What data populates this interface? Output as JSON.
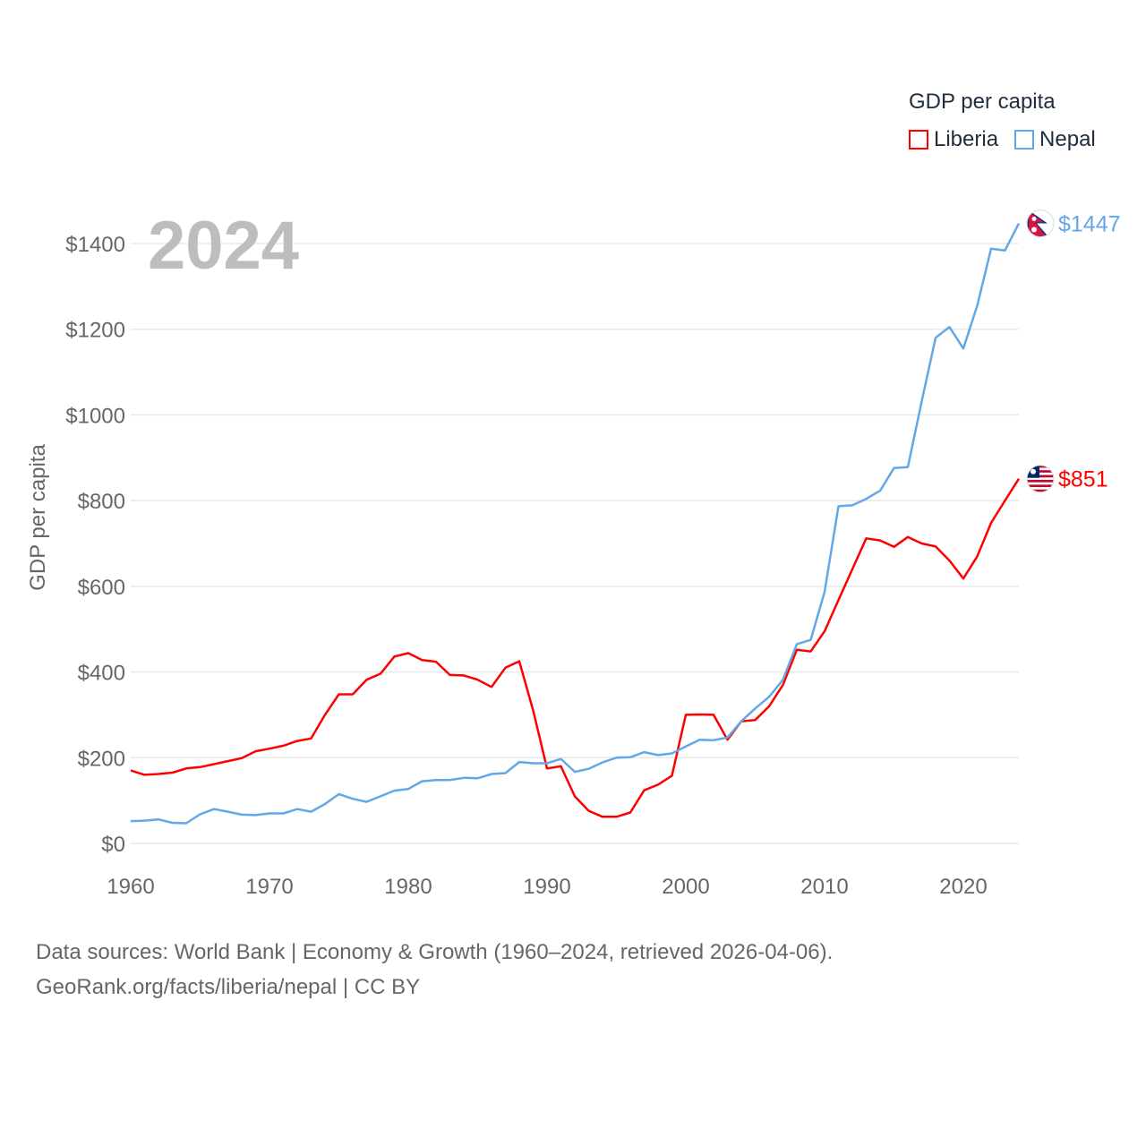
{
  "chart_data": {
    "type": "line",
    "title": "GDP per capita",
    "ylabel": "GDP per capita",
    "xlabel": "",
    "year_watermark": "2024",
    "xlim": [
      1960,
      2024
    ],
    "ylim": [
      0,
      1400
    ],
    "x_ticks": [
      1960,
      1970,
      1980,
      1990,
      2000,
      2010,
      2020
    ],
    "y_ticks": [
      0,
      200,
      400,
      600,
      800,
      1000,
      1200,
      1400
    ],
    "y_tick_labels": [
      "$0",
      "$200",
      "$400",
      "$600",
      "$800",
      "$1000",
      "$1200",
      "$1400"
    ],
    "grid": true,
    "legend_position": "top-right",
    "x_start": 1960,
    "series": [
      {
        "name": "Liberia",
        "color": "#ff0000",
        "end_label": "$851",
        "flag": "liberia-flag",
        "values": [
          170,
          160,
          162,
          165,
          175,
          178,
          185,
          192,
          199,
          215,
          221,
          228,
          239,
          245,
          300,
          348,
          348,
          382,
          396,
          436,
          444,
          428,
          424,
          393,
          392,
          382,
          365,
          410,
          425,
          310,
          175,
          180,
          110,
          76,
          62,
          62,
          72,
          124,
          137,
          158,
          300,
          301,
          300,
          242,
          285,
          288,
          320,
          370,
          452,
          448,
          495,
          568,
          640,
          712,
          707,
          692,
          715,
          700,
          693,
          660,
          618,
          670,
          748,
          800,
          851
        ]
      },
      {
        "name": "Nepal",
        "color": "#62a8e8",
        "end_label": "$1447",
        "flag": "nepal-flag",
        "values": [
          52,
          53,
          56,
          48,
          47,
          68,
          80,
          74,
          67,
          66,
          70,
          70,
          80,
          74,
          92,
          115,
          104,
          97,
          110,
          123,
          127,
          145,
          148,
          148,
          153,
          152,
          162,
          164,
          190,
          187,
          187,
          197,
          167,
          174,
          189,
          200,
          201,
          213,
          206,
          210,
          226,
          242,
          241,
          247,
          285,
          315,
          342,
          382,
          465,
          475,
          587,
          787,
          789,
          804,
          823,
          876,
          878,
          1032,
          1180,
          1205,
          1155,
          1255,
          1388,
          1384,
          1447
        ]
      }
    ]
  },
  "legend": {
    "title": "GDP per capita",
    "items": [
      "Liberia",
      "Nepal"
    ]
  },
  "footer": {
    "line1": "Data sources: World Bank | Economy & Growth (1960–2024, retrieved 2026-04-06).",
    "line2": "GeoRank.org/facts/liberia/nepal | CC BY"
  }
}
